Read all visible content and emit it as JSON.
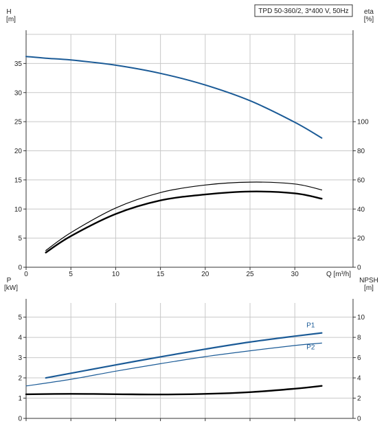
{
  "chart_data": [
    {
      "type": "line",
      "title": "TPD 50-360/2, 3*400 V, 50Hz",
      "xlabel": "Q [m³/h]",
      "x_ticks": [
        0,
        5,
        10,
        15,
        20,
        25,
        30
      ],
      "xlim": [
        0,
        36.5
      ],
      "left_axis": {
        "label_line1": "H",
        "label_line2": "[m]",
        "ylim": [
          0,
          40
        ],
        "ticks": [
          0,
          5,
          10,
          15,
          20,
          25,
          30,
          35
        ]
      },
      "right_axis": {
        "label_line1": "eta",
        "label_line2": "[%]",
        "ylim": [
          0,
          160
        ],
        "ticks": [
          0,
          20,
          40,
          60,
          80,
          100
        ]
      },
      "grid": true,
      "series": [
        {
          "name": "",
          "axis": "left",
          "color": "#1a5a96",
          "width": 2,
          "x": [
            0,
            2.2,
            5,
            10,
            15,
            20,
            25,
            30,
            33
          ],
          "y": [
            36.2,
            35.9,
            35.6,
            34.7,
            33.3,
            31.3,
            28.6,
            24.9,
            22.2
          ]
        },
        {
          "name": "",
          "axis": "right",
          "color": "#000000",
          "width": 1.2,
          "x": [
            2.2,
            5,
            10,
            15,
            20,
            25,
            30,
            33
          ],
          "y": [
            11.5,
            23.8,
            40.7,
            51.3,
            56.5,
            58.5,
            57.2,
            53.1
          ]
        },
        {
          "name": "",
          "axis": "right",
          "color": "#000000",
          "width": 2.4,
          "x": [
            2.2,
            5,
            10,
            15,
            20,
            25,
            30,
            33
          ],
          "y": [
            10.1,
            21.4,
            36.6,
            45.9,
            50.0,
            52.0,
            50.8,
            47.1
          ]
        }
      ]
    },
    {
      "type": "line",
      "xlim": [
        0,
        36.5
      ],
      "left_axis": {
        "label_line1": "P",
        "label_line2": "[kW]",
        "ylim": [
          0,
          5.7
        ],
        "ticks": [
          0,
          1,
          2,
          3,
          4,
          5
        ]
      },
      "right_axis": {
        "label_line1": "NPSH",
        "label_line2": "[m]",
        "ylim": [
          0,
          11.4
        ],
        "ticks": [
          0,
          2,
          4,
          6,
          8,
          10
        ]
      },
      "grid": true,
      "series": [
        {
          "name": "P1",
          "axis": "left",
          "color": "#1a5a96",
          "width": 2.2,
          "x": [
            2.2,
            5,
            10,
            15,
            20,
            25,
            30,
            33
          ],
          "y": [
            2.0,
            2.23,
            2.64,
            3.04,
            3.42,
            3.77,
            4.06,
            4.22
          ]
        },
        {
          "name": "P2",
          "axis": "left",
          "color": "#1a5a96",
          "width": 1.2,
          "x": [
            0,
            5,
            10,
            15,
            20,
            25,
            30,
            33
          ],
          "y": [
            1.6,
            1.93,
            2.33,
            2.7,
            3.05,
            3.34,
            3.6,
            3.72
          ]
        },
        {
          "name": "",
          "axis": "right",
          "color": "#000000",
          "width": 2.4,
          "x": [
            0,
            5,
            10,
            15,
            20,
            25,
            30,
            33
          ],
          "y": [
            2.38,
            2.42,
            2.39,
            2.36,
            2.42,
            2.59,
            2.93,
            3.21
          ]
        }
      ]
    }
  ]
}
